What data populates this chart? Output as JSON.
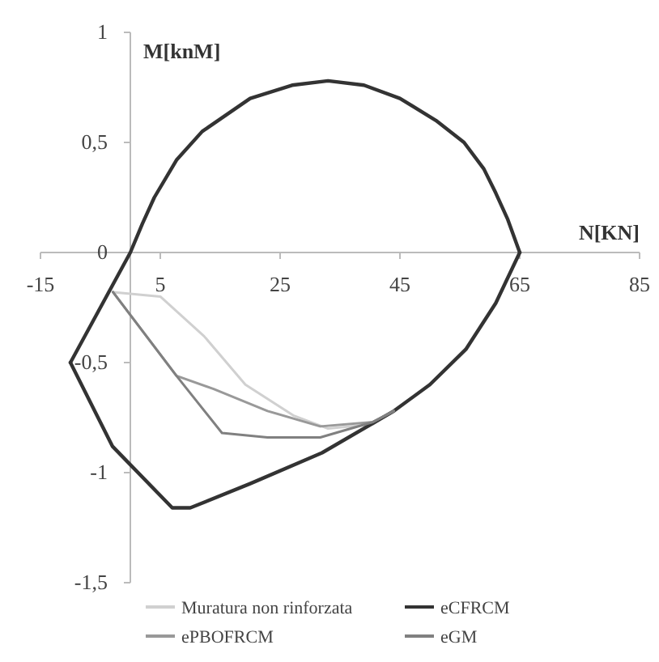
{
  "chart_data": {
    "type": "line",
    "xlabel": "N[KN]",
    "ylabel": "M[knM]",
    "xlim": [
      -15,
      85
    ],
    "ylim": [
      -1.5,
      1
    ],
    "xticks": [
      -15,
      5,
      25,
      45,
      65,
      85
    ],
    "yticks": [
      {
        "value": 1,
        "label": "1"
      },
      {
        "value": 0.5,
        "label": "0,5"
      },
      {
        "value": 0,
        "label": "0"
      },
      {
        "value": -0.5,
        "label": "-0,5"
      },
      {
        "value": -1,
        "label": "-1"
      },
      {
        "value": -1.5,
        "label": "-1,5"
      }
    ],
    "grid": false,
    "legend": "bottom",
    "marker": "none",
    "line_style": "solid",
    "series": [
      {
        "name": "Muratura non rinforzata",
        "color": "#d0d0d0",
        "x": [
          -2.9,
          5,
          12.3,
          19.2,
          27.2,
          33,
          40.5,
          44
        ],
        "values": [
          -0.18,
          -0.2,
          -0.38,
          -0.6,
          -0.74,
          -0.8,
          -0.78,
          -0.72
        ]
      },
      {
        "name": "eCFRCM",
        "color": "#333333",
        "x": [
          -10,
          -5,
          0,
          2,
          4,
          7.7,
          12,
          20,
          27,
          33,
          39,
          45,
          51,
          55.7,
          59,
          61,
          63,
          65
        ],
        "values": [
          -0.5,
          -0.25,
          0,
          0.13,
          0.25,
          0.42,
          0.55,
          0.7,
          0.76,
          0.78,
          0.76,
          0.7,
          0.6,
          0.5,
          0.38,
          0.27,
          0.15,
          0
        ]
      },
      {
        "color": "#333333",
        "x": [
          -10,
          -3,
          7,
          10,
          20,
          32,
          44,
          50,
          56,
          61,
          65
        ],
        "values": [
          -0.5,
          -0.88,
          -1.16,
          -1.16,
          -1.05,
          -0.91,
          -0.72,
          -0.6,
          -0.44,
          -0.23,
          0
        ]
      },
      {
        "name": "ePBOFRCM",
        "color": "#999999",
        "x": [
          -2.9,
          7.7,
          13.9,
          22.9,
          31.7,
          40.5,
          44
        ],
        "values": [
          -0.18,
          -0.56,
          -0.62,
          -0.72,
          -0.79,
          -0.77,
          -0.72
        ]
      },
      {
        "name": "eGM",
        "color": "#808080",
        "x": [
          -2.9,
          7.7,
          15.3,
          22.9,
          31.7,
          40.5,
          44
        ],
        "values": [
          -0.18,
          -0.56,
          -0.82,
          -0.84,
          -0.84,
          -0.77,
          -0.72
        ]
      }
    ]
  }
}
